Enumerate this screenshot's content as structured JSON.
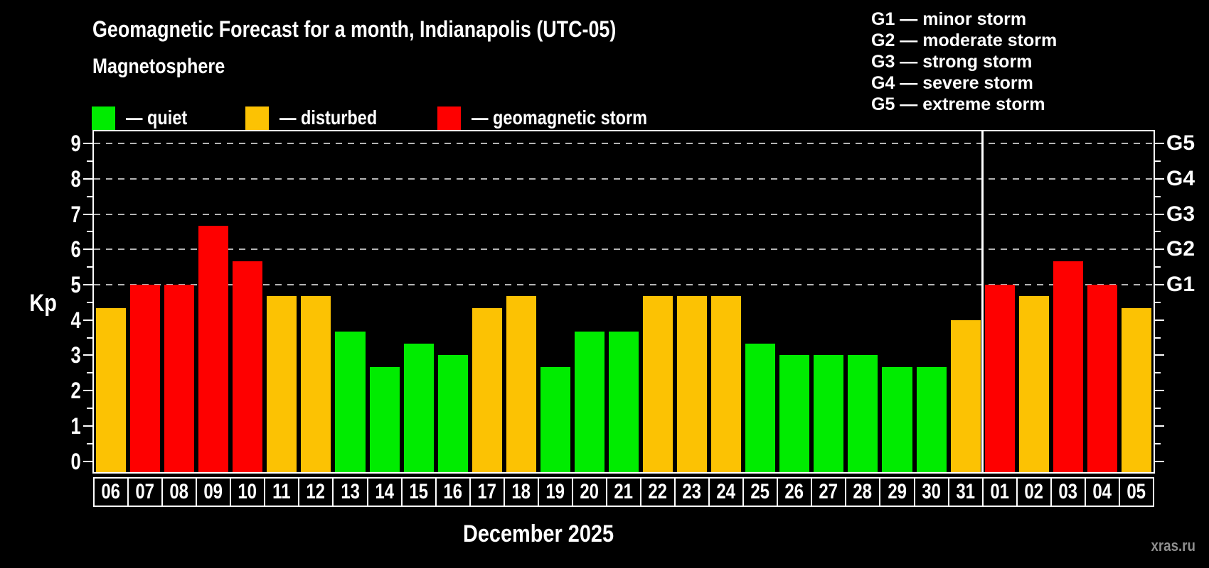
{
  "title": "Geomagnetic Forecast for a month, Indianapolis (UTC-05)",
  "subtitle": "Magnetosphere",
  "legend": {
    "quiet_label": "— quiet",
    "disturbed_label": "— disturbed",
    "storm_label": "— geomagnetic storm"
  },
  "g_legend": {
    "items": [
      "G1 — minor storm",
      "G2 — moderate storm",
      "G3 — strong storm",
      "G4 — severe storm",
      "G5 — extreme storm"
    ]
  },
  "axis": {
    "kp_label": "Kp",
    "kp_ticks": [
      0,
      1,
      2,
      3,
      4,
      5,
      6,
      7,
      8,
      9
    ],
    "grid_kp": [
      5,
      6,
      7,
      8,
      9
    ],
    "g_levels": [
      {
        "label": "G1",
        "kp": 5
      },
      {
        "label": "G2",
        "kp": 6
      },
      {
        "label": "G3",
        "kp": 7
      },
      {
        "label": "G4",
        "kp": 8
      },
      {
        "label": "G5",
        "kp": 9
      }
    ]
  },
  "xlabel": "December 2025",
  "watermark": "xras.ru",
  "colors": {
    "quiet": "#00ec00",
    "disturbed": "#fcc203",
    "storm": "#fe0000",
    "axis": "#ffffff",
    "grid": "#b4b4b4",
    "background": "#000000",
    "watermark": "#8f8f8f"
  },
  "chart_data": {
    "type": "bar",
    "title": "Geomagnetic Forecast for a month, Indianapolis (UTC-05)",
    "xlabel": "December 2025",
    "ylabel": "Kp",
    "ylim": [
      0,
      9.4
    ],
    "grid": "dashed horizontal lines at Kp 5,6,7,8,9 (G1–G5 storm levels)",
    "legend_position": "top-left (quiet/disturbed/storm), top-right (G1–G5 scale)",
    "categories": [
      "06",
      "07",
      "08",
      "09",
      "10",
      "11",
      "12",
      "13",
      "14",
      "15",
      "16",
      "17",
      "18",
      "19",
      "20",
      "21",
      "22",
      "23",
      "24",
      "25",
      "26",
      "27",
      "28",
      "29",
      "30",
      "31",
      "01",
      "02",
      "03",
      "04",
      "05"
    ],
    "values": [
      4.33,
      5,
      5,
      6.67,
      5.67,
      4.67,
      4.67,
      3.67,
      2.67,
      3.33,
      3,
      4.33,
      4.67,
      2.67,
      3.67,
      3.67,
      4.67,
      4.67,
      4.67,
      3.33,
      3,
      3,
      3,
      2.67,
      2.67,
      4,
      5,
      4.67,
      5.67,
      5,
      4.33
    ],
    "statuses": [
      "disturbed",
      "storm",
      "storm",
      "storm",
      "storm",
      "disturbed",
      "disturbed",
      "quiet",
      "quiet",
      "quiet",
      "quiet",
      "disturbed",
      "disturbed",
      "quiet",
      "quiet",
      "quiet",
      "disturbed",
      "disturbed",
      "disturbed",
      "quiet",
      "quiet",
      "quiet",
      "quiet",
      "quiet",
      "quiet",
      "disturbed",
      "storm",
      "disturbed",
      "storm",
      "storm",
      "disturbed"
    ],
    "month_boundary_index": 26
  }
}
